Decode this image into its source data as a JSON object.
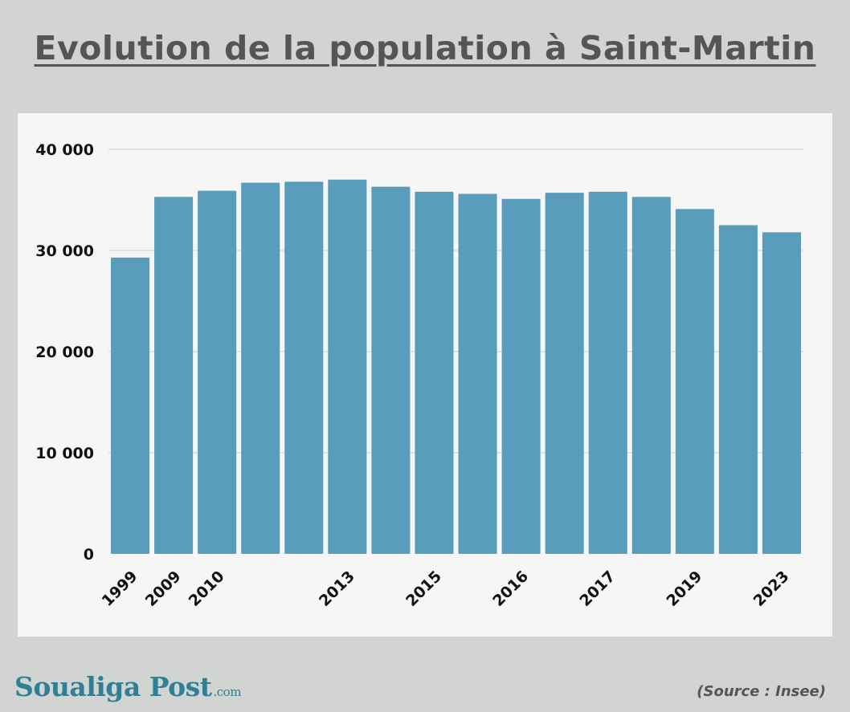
{
  "title": "Evolution de la population à Saint-Martin",
  "logo": {
    "name": "Soualiga Post",
    "suffix": ".com"
  },
  "source": "(Source : Insee)",
  "colors": {
    "bar": "#5a9cbb",
    "grid": "#cfcfcf",
    "text": "#111111",
    "panel": "#f6f6f6"
  },
  "chart_data": {
    "type": "bar",
    "title": "Evolution de la population à Saint-Martin",
    "xlabel": "",
    "ylabel": "",
    "ylim": [
      0,
      40000
    ],
    "yticks": [
      0,
      10000,
      20000,
      30000,
      40000
    ],
    "ytick_labels": [
      "0",
      "10 000",
      "20 000",
      "30 000",
      "40 000"
    ],
    "grid": true,
    "legend": "none",
    "categories": [
      "1999",
      "2009",
      "2010",
      "",
      "",
      "2013",
      "",
      "2015",
      "",
      "2016",
      "",
      "2017",
      "",
      "2019",
      "",
      "2023"
    ],
    "values": [
      29300,
      35300,
      35900,
      36700,
      36800,
      37000,
      36300,
      35800,
      35600,
      35100,
      35700,
      35800,
      35300,
      34100,
      32500,
      31800
    ]
  }
}
